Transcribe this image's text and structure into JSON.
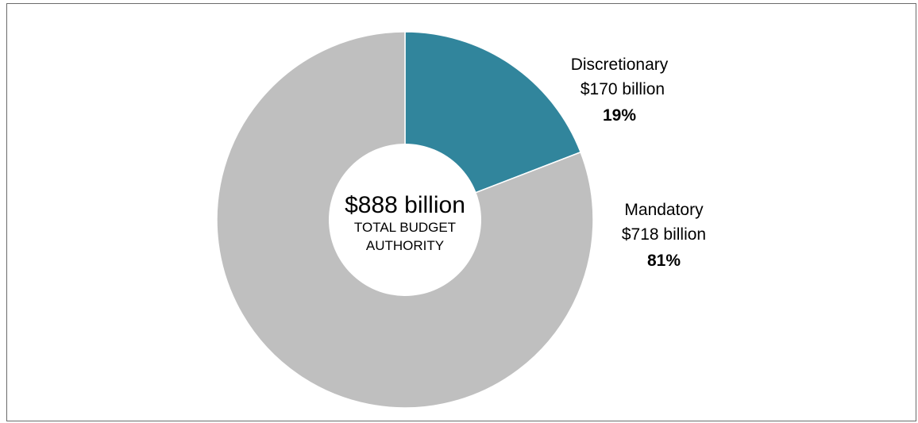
{
  "chart_data": {
    "type": "pie",
    "style": "donut",
    "center": {
      "amount": "$888 billion",
      "label_line1": "TOTAL BUDGET",
      "label_line2": "AUTHORITY"
    },
    "total": 888,
    "unit": "billion",
    "slices": [
      {
        "name": "Discretionary",
        "value": 170,
        "value_label": "$170 billion",
        "percent": 19,
        "percent_label": "19%",
        "color": "#31859c"
      },
      {
        "name": "Mandatory",
        "value": 718,
        "value_label": "$718 billion",
        "percent": 81,
        "percent_label": "81%",
        "color": "#bfbfbf"
      }
    ]
  }
}
